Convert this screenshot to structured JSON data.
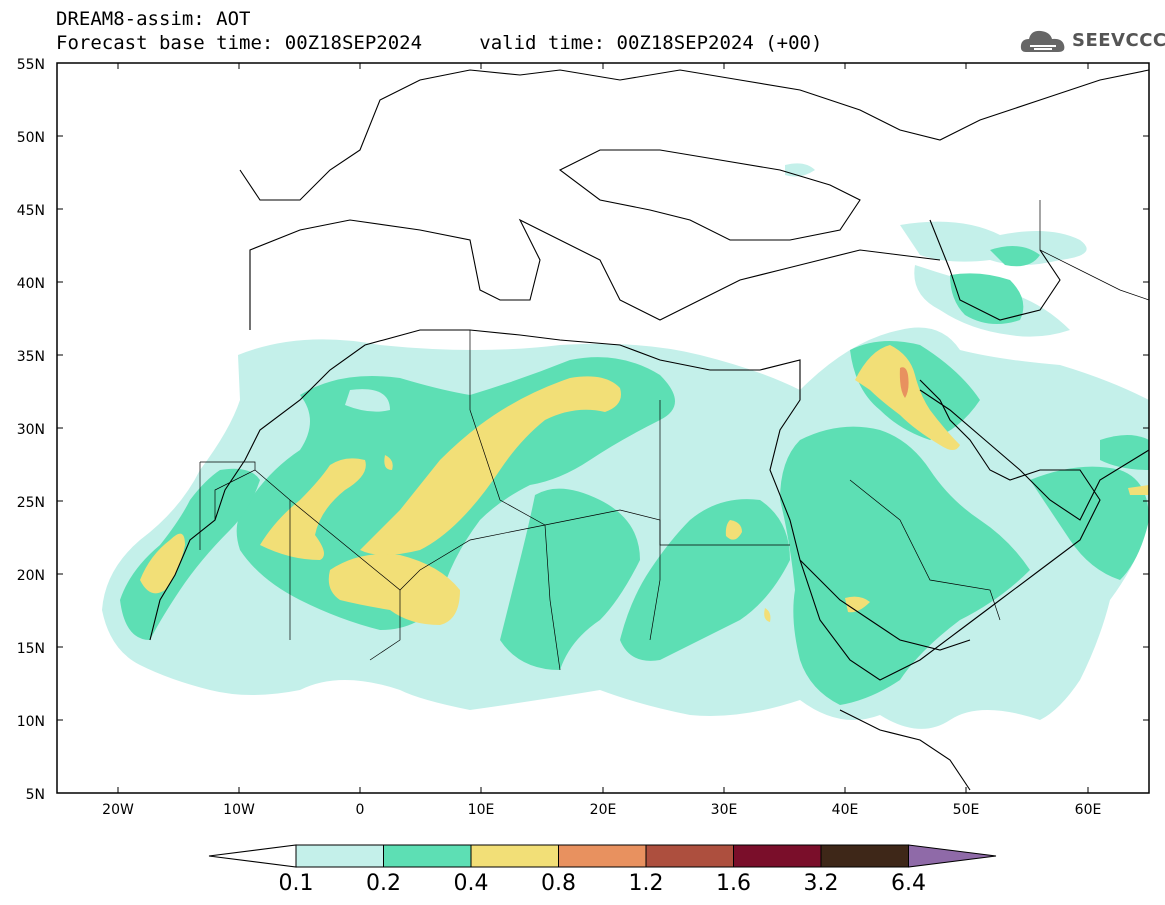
{
  "header": {
    "title": "DREAM8-assim: AOT",
    "base_time_label": "Forecast base time: 00Z18SEP2024",
    "valid_time_label": "valid time: 00Z18SEP2024 (+00)"
  },
  "logo": {
    "text": "SEEVCCC",
    "icon": "cloud-icon"
  },
  "axes": {
    "lat_labels": [
      "55N",
      "50N",
      "45N",
      "40N",
      "35N",
      "30N",
      "25N",
      "20N",
      "15N",
      "10N",
      "5N"
    ],
    "lon_labels": [
      "20W",
      "10W",
      "0",
      "10E",
      "20E",
      "30E",
      "40E",
      "50E",
      "60E"
    ],
    "lon_range": [
      -25,
      65
    ],
    "lat_range": [
      5,
      55
    ]
  },
  "colorbar": {
    "levels": [
      "0.1",
      "0.2",
      "0.4",
      "0.8",
      "1.2",
      "1.6",
      "3.2",
      "6.4"
    ],
    "colors": [
      "#c4f0ea",
      "#5ddfb4",
      "#f2df77",
      "#e8915f",
      "#ad4f3e",
      "#7a0e2a",
      "#3e2718",
      "#8f6aa8"
    ],
    "under_color": "#ffffff"
  }
}
